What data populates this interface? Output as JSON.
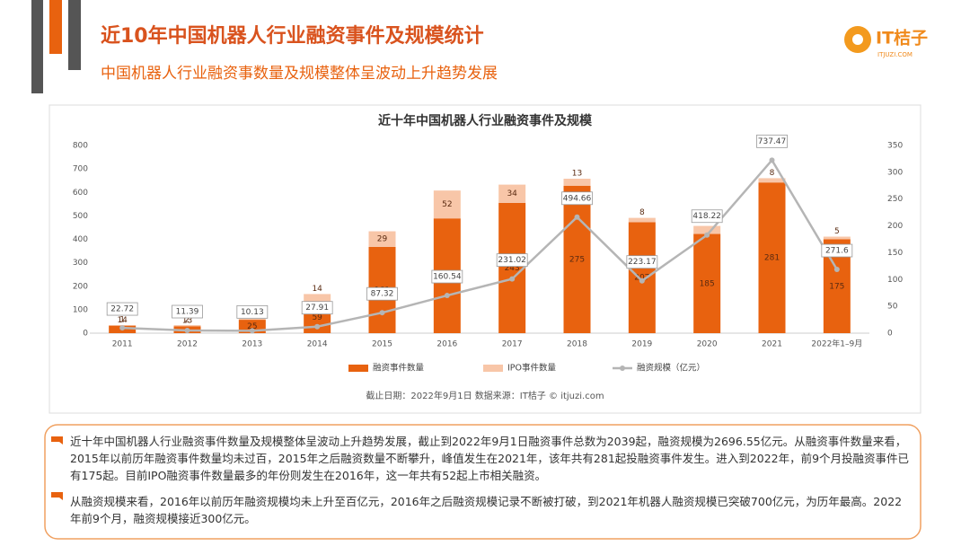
{
  "header": {
    "title": "近10年中国机器人行业融资事件及规模统计",
    "subtitle": "中国机器人行业融资事数量及规模整体呈波动上升趋势发展",
    "logo": "IT桔子",
    "logo_sub": "ITJUZI.COM"
  },
  "chart_data": {
    "type": "bar",
    "title": "近十年中国机器人行业融资事件及规模",
    "stacked": true,
    "categories": [
      "2011",
      "2012",
      "2013",
      "2014",
      "2015",
      "2016",
      "2017",
      "2018",
      "2019",
      "2020",
      "2021",
      "2022年1–9月"
    ],
    "series": [
      {
        "name": "融资事件数量",
        "type": "bar",
        "axis": "y2",
        "color": "#e8620f",
        "values": [
          14,
          13,
          25,
          59,
          161,
          214,
          243,
          275,
          207,
          185,
          281,
          175
        ]
      },
      {
        "name": "IPO事件数量",
        "type": "bar",
        "axis": "y2",
        "color": "#f8c6a8",
        "values": [
          1,
          2,
          2,
          14,
          29,
          52,
          34,
          13,
          8,
          15,
          8,
          5
        ]
      },
      {
        "name": "融资规模（亿元）",
        "type": "line",
        "axis": "y",
        "color": "#b5b5b5",
        "values": [
          22.72,
          11.39,
          10.13,
          27.91,
          87.32,
          160.54,
          231.02,
          494.66,
          223.17,
          418.22,
          737.47,
          271.6
        ]
      }
    ],
    "ylim": [
      0,
      800
    ],
    "yticks": [
      0,
      100,
      200,
      300,
      400,
      500,
      600,
      700,
      800
    ],
    "y2lim": [
      0,
      350
    ],
    "y2ticks": [
      0,
      50,
      100,
      150,
      200,
      250,
      300,
      350
    ],
    "grid": false,
    "legend": "bottom",
    "note": "截止日期：2022年9月1日    数据来源：IT桔子 © itjuzi.com"
  },
  "text_box": {
    "paragraphs": [
      "近十年中国机器人行业融资事件数量及规模整体呈波动上升趋势发展，截止到2022年9月1日融资事件总数为2039起，融资规模为2696.55亿元。从融资事件数量来看，2015年以前历年融资事件数量均未过百，2015年之后融资数量不断攀升，峰值发生在2021年，该年共有281起投融资事件发生。进入到2022年，前9个月投融资事件已有175起。目前IPO融资事件数量最多的年份则发生在2016年，这一年共有52起上市相关融资。",
      "从融资规模来看，2016年以前历年融资规模均未上升至百亿元，2016年之后融资规模记录不断被打破，到2021年机器人融资规模已突破700亿元，为历年最高。2022年前9个月，融资规模接近300亿元。"
    ]
  }
}
